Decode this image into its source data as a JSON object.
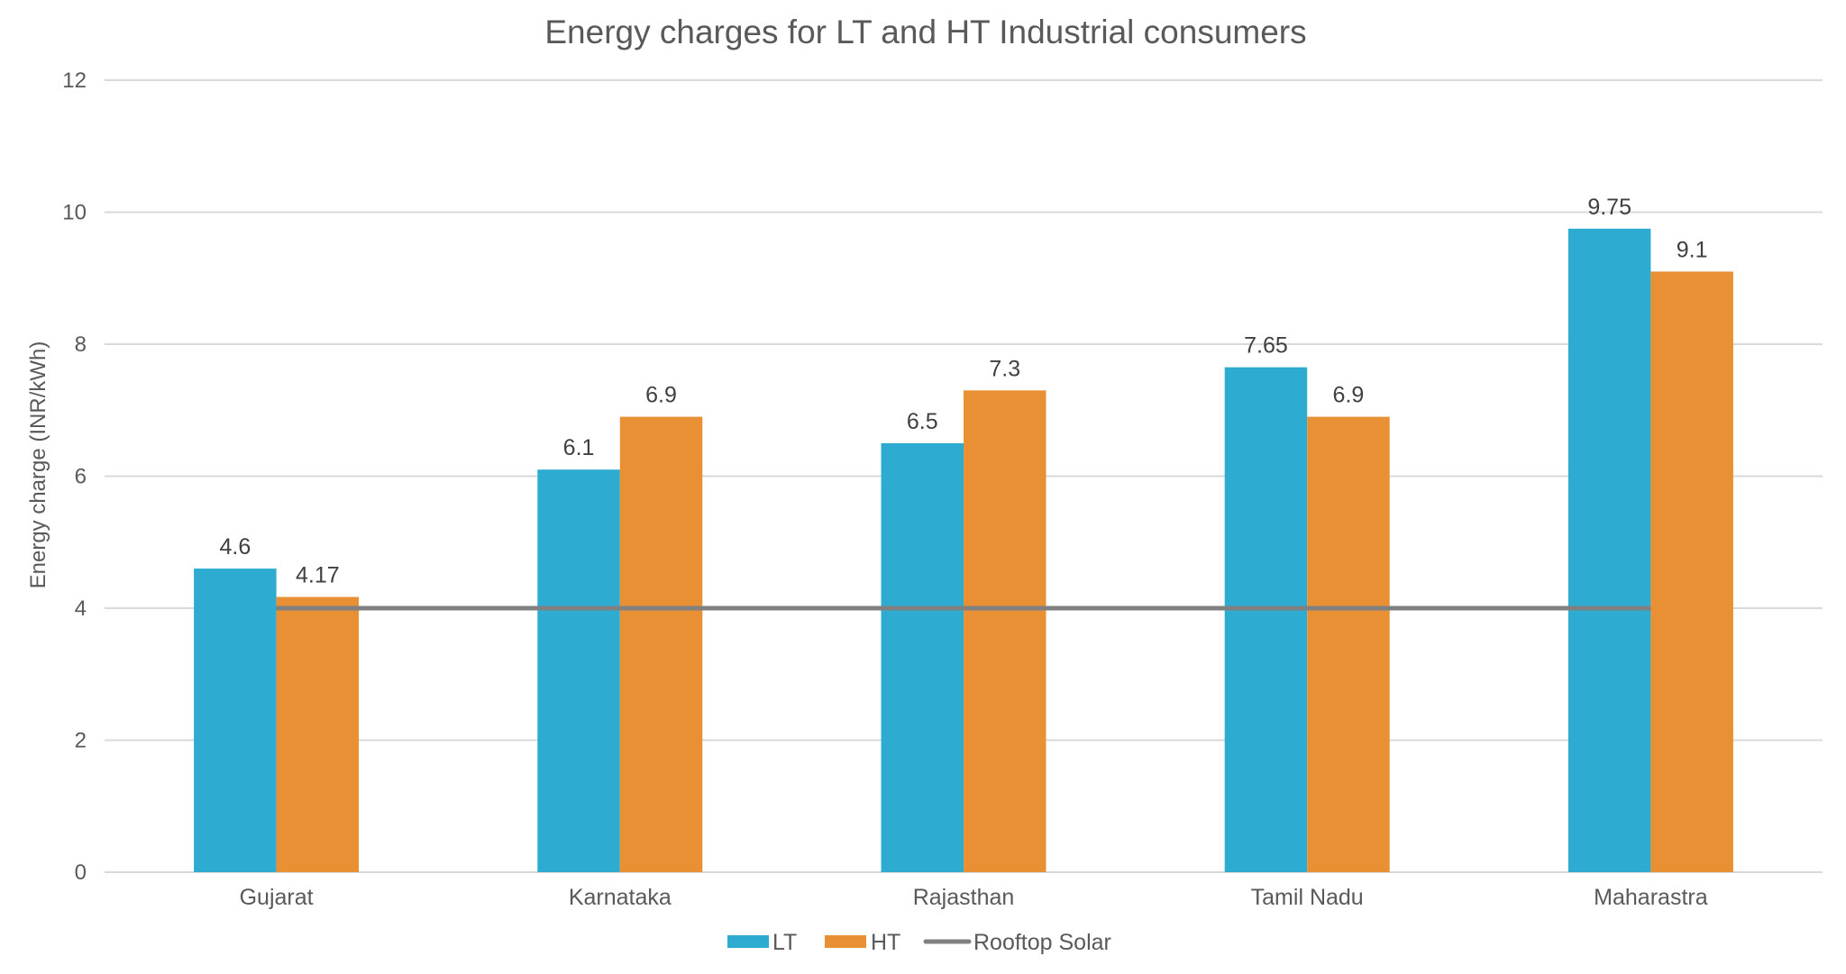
{
  "chart_data": {
    "type": "bar",
    "title": "Energy charges for LT and HT Industrial consumers",
    "xlabel": "",
    "ylabel": "Energy charge (INR/kWh)",
    "ylim": [
      0,
      12
    ],
    "yticks": [
      0,
      2,
      4,
      6,
      8,
      10,
      12
    ],
    "grid": true,
    "legend_position": "bottom",
    "categories": [
      "Gujarat",
      "Karnataka",
      "Rajasthan",
      "Tamil Nadu",
      "Maharastra"
    ],
    "series": [
      {
        "name": "LT",
        "type": "bar",
        "color": "#2eabd0",
        "values": [
          4.6,
          6.1,
          6.5,
          7.65,
          9.75
        ],
        "labels": [
          "4.6",
          "6.1",
          "6.5",
          "7.65",
          "9.75"
        ]
      },
      {
        "name": "HT",
        "type": "bar",
        "color": "#ea9034",
        "values": [
          4.17,
          6.9,
          7.3,
          6.9,
          9.1
        ],
        "labels": [
          "4.17",
          "6.9",
          "7.3",
          "6.9",
          "9.1"
        ]
      },
      {
        "name": "Rooftop Solar",
        "type": "line",
        "color": "#808080",
        "values": [
          4,
          4,
          4,
          4,
          4
        ]
      }
    ]
  }
}
